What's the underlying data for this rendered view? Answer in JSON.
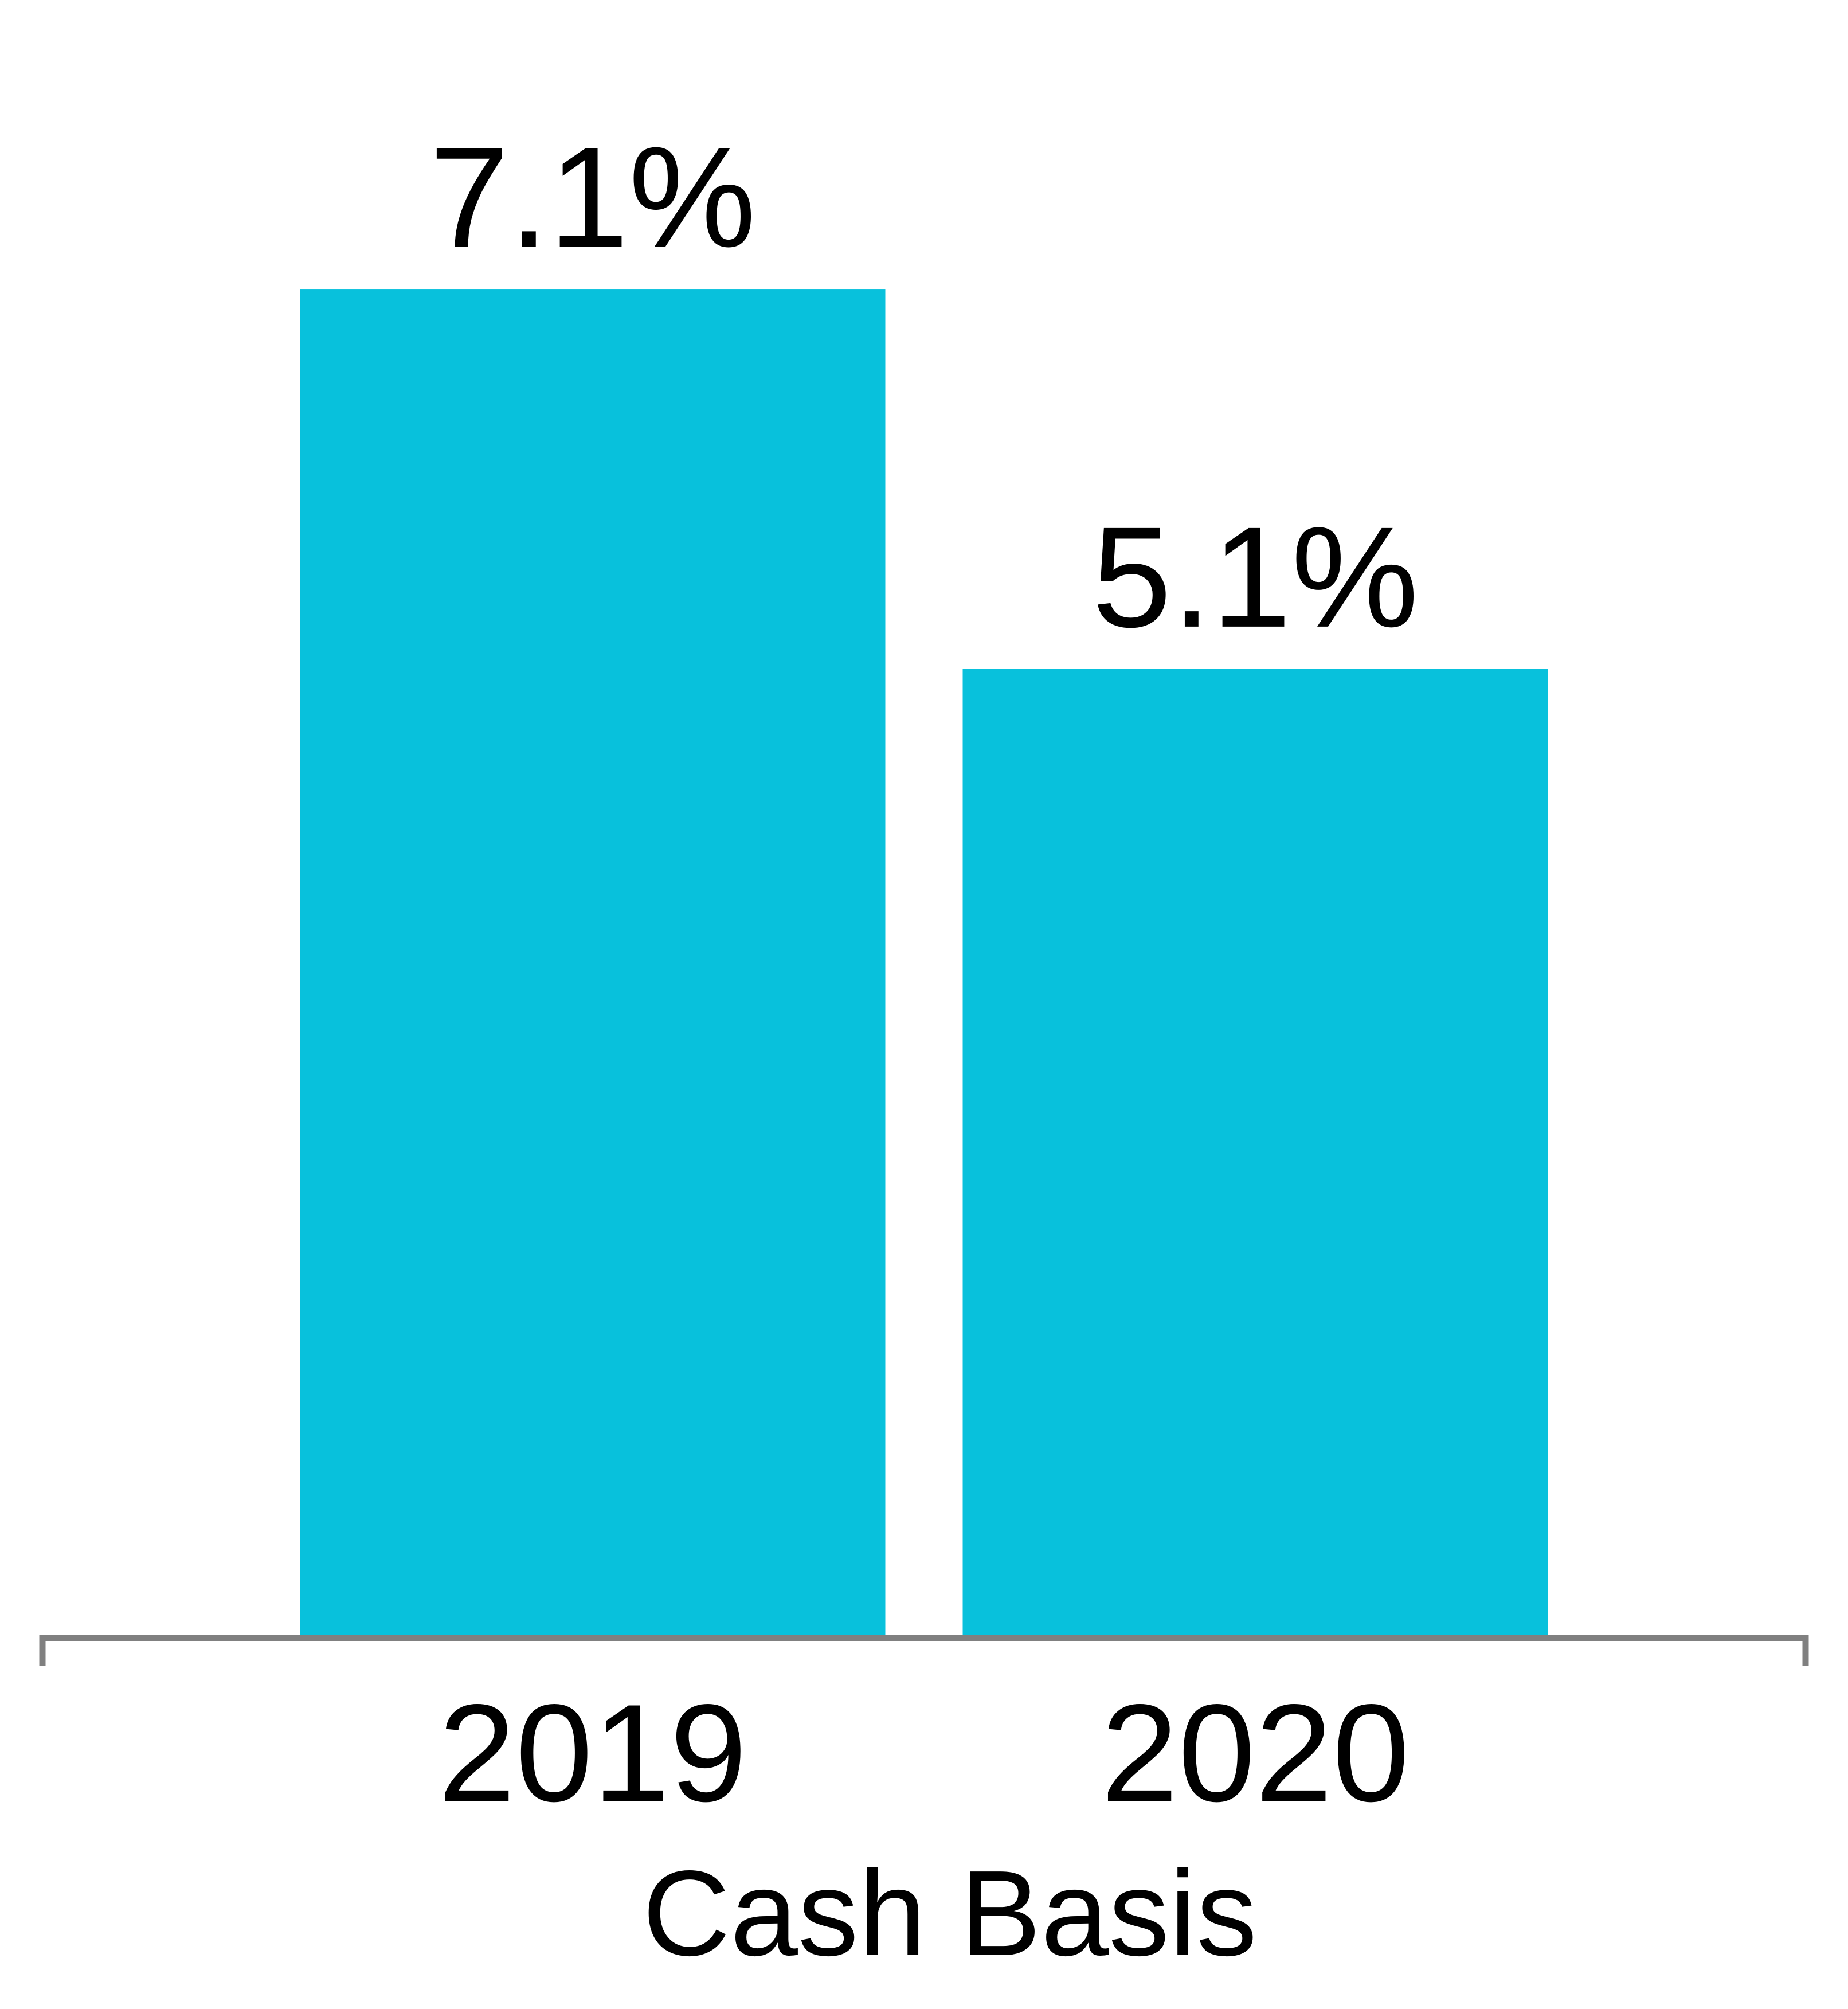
{
  "chart_data": {
    "type": "bar",
    "categories": [
      "2019",
      "2020"
    ],
    "values": [
      7.1,
      5.1
    ],
    "value_labels": [
      "7.1%",
      "5.1%"
    ],
    "x_label": "Cash Basis",
    "color": "#08c1dc"
  }
}
